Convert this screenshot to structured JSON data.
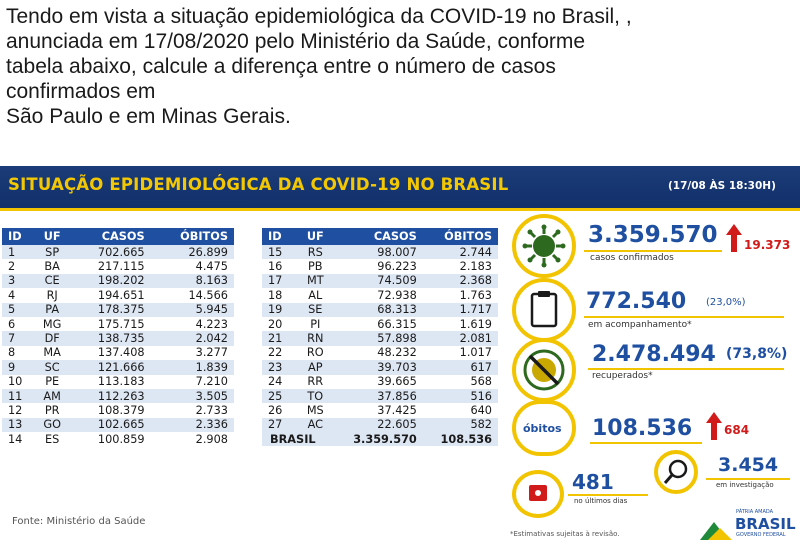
{
  "question": {
    "line1": "Tendo em vista a situação epidemiológica da COVID-19 no Brasil, ,",
    "line2": "anunciada em  17/08/2020 pelo Ministério da Saúde, conforme",
    "line3": "tabela abaixo, calcule a diferença entre o número de casos",
    "line4": "confirmados em",
    "line5": "São Paulo e em Minas Gerais."
  },
  "banner": {
    "title": "SITUAÇÃO EPIDEMIOLÓGICA DA COVID-19 NO BRASIL",
    "date": "(17/08 ÀS 18:30H)"
  },
  "table": {
    "headers": {
      "id": "ID",
      "uf": "UF",
      "casos": "CASOS",
      "obitos": "ÓBITOS"
    },
    "left_rows": [
      {
        "id": "1",
        "uf": "SP",
        "casos": "702.665",
        "obitos": "26.899"
      },
      {
        "id": "2",
        "uf": "BA",
        "casos": "217.115",
        "obitos": "4.475"
      },
      {
        "id": "3",
        "uf": "CE",
        "casos": "198.202",
        "obitos": "8.163"
      },
      {
        "id": "4",
        "uf": "RJ",
        "casos": "194.651",
        "obitos": "14.566"
      },
      {
        "id": "5",
        "uf": "PA",
        "casos": "178.375",
        "obitos": "5.945"
      },
      {
        "id": "6",
        "uf": "MG",
        "casos": "175.715",
        "obitos": "4.223"
      },
      {
        "id": "7",
        "uf": "DF",
        "casos": "138.735",
        "obitos": "2.042"
      },
      {
        "id": "8",
        "uf": "MA",
        "casos": "137.408",
        "obitos": "3.277"
      },
      {
        "id": "9",
        "uf": "SC",
        "casos": "121.666",
        "obitos": "1.839"
      },
      {
        "id": "10",
        "uf": "PE",
        "casos": "113.183",
        "obitos": "7.210"
      },
      {
        "id": "11",
        "uf": "AM",
        "casos": "112.263",
        "obitos": "3.505"
      },
      {
        "id": "12",
        "uf": "PR",
        "casos": "108.379",
        "obitos": "2.733"
      },
      {
        "id": "13",
        "uf": "GO",
        "casos": "102.665",
        "obitos": "2.336"
      },
      {
        "id": "14",
        "uf": "ES",
        "casos": "100.859",
        "obitos": "2.908"
      }
    ],
    "right_rows": [
      {
        "id": "15",
        "uf": "RS",
        "casos": "98.007",
        "obitos": "2.744"
      },
      {
        "id": "16",
        "uf": "PB",
        "casos": "96.223",
        "obitos": "2.183"
      },
      {
        "id": "17",
        "uf": "MT",
        "casos": "74.509",
        "obitos": "2.368"
      },
      {
        "id": "18",
        "uf": "AL",
        "casos": "72.938",
        "obitos": "1.763"
      },
      {
        "id": "19",
        "uf": "SE",
        "casos": "68.313",
        "obitos": "1.717"
      },
      {
        "id": "20",
        "uf": "PI",
        "casos": "66.315",
        "obitos": "1.619"
      },
      {
        "id": "21",
        "uf": "RN",
        "casos": "57.898",
        "obitos": "2.081"
      },
      {
        "id": "22",
        "uf": "RO",
        "casos": "48.232",
        "obitos": "1.017"
      },
      {
        "id": "23",
        "uf": "AP",
        "casos": "39.703",
        "obitos": "617"
      },
      {
        "id": "24",
        "uf": "RR",
        "casos": "39.665",
        "obitos": "568"
      },
      {
        "id": "25",
        "uf": "TO",
        "casos": "37.856",
        "obitos": "516"
      },
      {
        "id": "26",
        "uf": "MS",
        "casos": "37.425",
        "obitos": "640"
      },
      {
        "id": "27",
        "uf": "AC",
        "casos": "22.605",
        "obitos": "582"
      }
    ],
    "total": {
      "label": "BRASIL",
      "casos": "3.359.570",
      "obitos": "108.536"
    }
  },
  "stats": {
    "confirmed": {
      "value": "3.359.570",
      "increase": "19.373",
      "label": "casos confirmados",
      "icon": "virus-icon"
    },
    "monitoring": {
      "value": "772.540",
      "pct": "(23,0%)",
      "label": "em acompanhamento*",
      "icon": "clipboard-icon"
    },
    "recovered": {
      "value": "2.478.494",
      "pct": "(73,8%)",
      "label": "recuperados*",
      "icon": "virus-crossed-icon"
    },
    "deaths": {
      "badge": "óbitos",
      "value": "108.536",
      "increase": "684"
    },
    "investigation": {
      "value": "3.454",
      "label": "em investigação",
      "icon": "magnifier-icon"
    },
    "inconclusive": {
      "value": "481",
      "label": "no últimos dias",
      "icon": "calendar-icon"
    }
  },
  "footer": {
    "source": "Fonte: Ministério da Saúde",
    "note": "*Estimativas sujeitas à revisão.",
    "logo_small": "PÁTRIA AMADA",
    "logo": "BRASIL",
    "logo_sub": "GOVERNO FEDERAL"
  },
  "colors": {
    "banner_bg": "#1b3c78",
    "banner_text": "#f4c800",
    "header_bg": "#1f4fa0",
    "accent_yellow": "#f2c400",
    "stat_blue": "#1f4fa0",
    "increase_red": "#d11a1a"
  }
}
